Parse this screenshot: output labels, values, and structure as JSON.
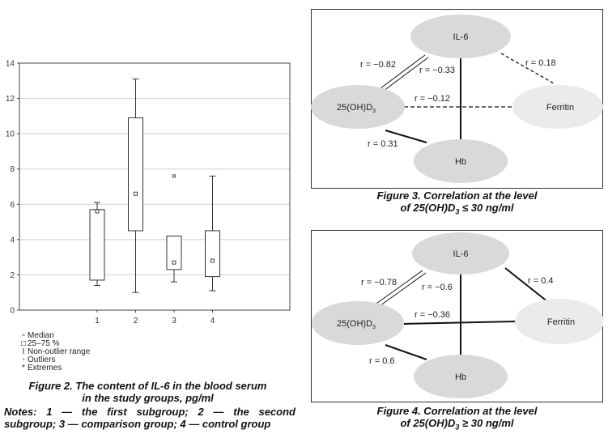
{
  "figure2": {
    "caption_line1": "Figure 2. The content of IL-6 in the blood serum",
    "caption_line2": "in the study groups, pg/ml",
    "notes_line1": "Notes: 1 — the first subgroup; 2 — the second",
    "notes_line2": "subgroup; 3 — comparison group; 4 — control group",
    "legend": {
      "median": "Median",
      "quartiles": "25–75 %",
      "range": "Non-outlier range",
      "outliers": "Outliers",
      "extremes": "Extremes"
    },
    "chart_data": {
      "type": "box",
      "categories": [
        "1",
        "2",
        "3",
        "4"
      ],
      "ylim": [
        0,
        14
      ],
      "yticks": [
        "0",
        "2",
        "4",
        "6",
        "8",
        "10",
        "12",
        "14"
      ],
      "grid": true,
      "boxes": [
        {
          "category": "1",
          "min": 1.4,
          "q1": 1.7,
          "median": 5.6,
          "q3": 5.7,
          "max": 6.1,
          "outliers": []
        },
        {
          "category": "2",
          "min": 1.0,
          "q1": 4.5,
          "median": 6.6,
          "q3": 10.9,
          "max": 13.1,
          "outliers": []
        },
        {
          "category": "3",
          "min": 1.6,
          "q1": 2.3,
          "median": 2.7,
          "q3": 4.2,
          "max": 4.2,
          "outliers": [
            7.6
          ]
        },
        {
          "category": "4",
          "min": 1.1,
          "q1": 1.9,
          "median": 2.8,
          "q3": 4.5,
          "max": 7.6,
          "outliers": []
        }
      ]
    }
  },
  "figure3": {
    "caption_line1": "Figure 3. Correlation at the level",
    "caption_line2_pre": "of 25(OH)D",
    "caption_line2_sub": "3",
    "caption_line2_post": " ≤ 30 ng/ml",
    "nodes": {
      "il6": "IL-6",
      "vitd": "25(OH)D",
      "vitd_sub": "3",
      "ferritin": "Ferritin",
      "hb": "Hb"
    },
    "labels": {
      "il6_vitd": "r = −0.82",
      "il6_hb": "r = −0.33",
      "il6_ferritin": "r = 0.18",
      "vitd_ferritin": "r = −0.12",
      "vitd_hb": "r = 0.31"
    }
  },
  "figure4": {
    "caption_line1": "Figure 4. Correlation at the level",
    "caption_line2_pre": "of 25(OH)D",
    "caption_line2_sub": "3",
    "caption_line2_post": " ≥ 30 ng/ml",
    "nodes": {
      "il6": "IL-6",
      "vitd": "25(OH)D",
      "vitd_sub": "3",
      "ferritin": "Ferritin",
      "hb": "Hb"
    },
    "labels": {
      "il6_vitd": "r = −0.78",
      "il6_hb": "r = −0.6",
      "il6_ferritin": "r = 0.4",
      "vitd_ferritin": "r = −0.36",
      "vitd_hb": "r = 0.6"
    }
  }
}
